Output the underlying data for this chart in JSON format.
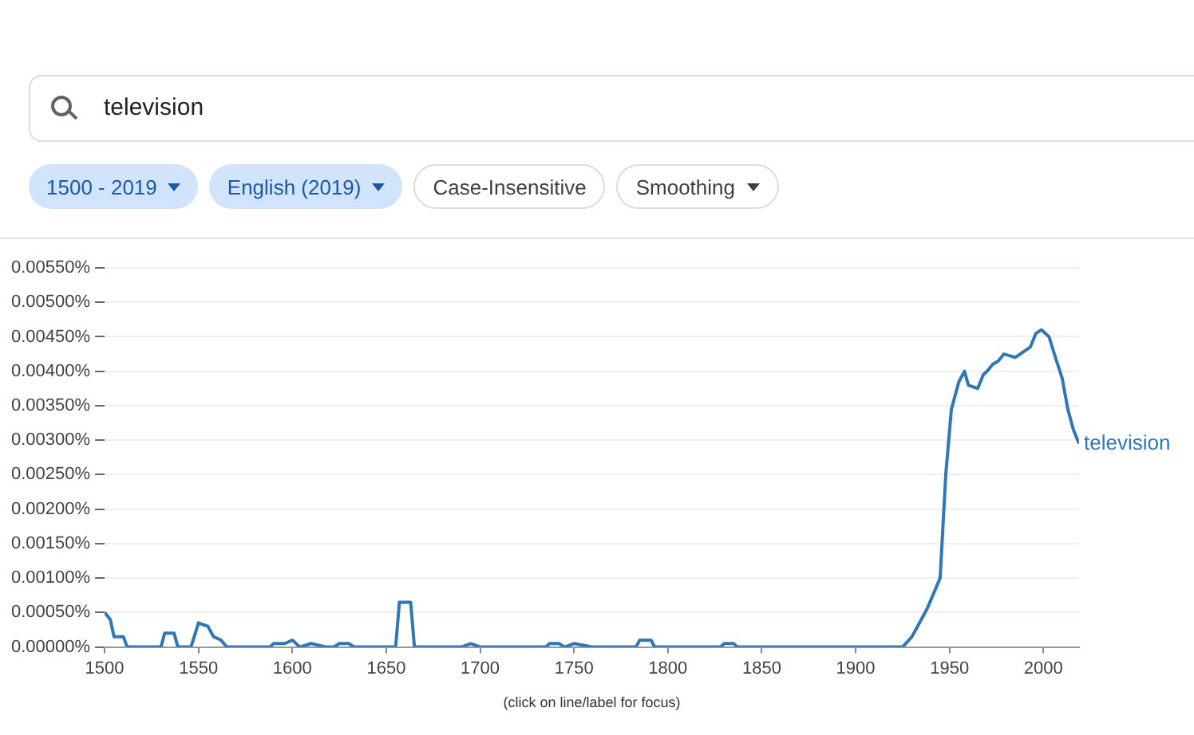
{
  "chart_data": {
    "type": "line",
    "x": [
      1500,
      1503,
      1505,
      1510,
      1512,
      1530,
      1532,
      1537,
      1539,
      1546,
      1550,
      1555,
      1558,
      1562,
      1565,
      1588,
      1590,
      1596,
      1600,
      1604,
      1610,
      1618,
      1622,
      1625,
      1630,
      1633,
      1655,
      1657,
      1663,
      1665,
      1672,
      1690,
      1695,
      1700,
      1735,
      1737,
      1742,
      1745,
      1750,
      1760,
      1783,
      1785,
      1791,
      1793,
      1828,
      1830,
      1835,
      1837,
      1900,
      1910,
      1920,
      1925,
      1930,
      1935,
      1938,
      1945,
      1948,
      1951,
      1955,
      1958,
      1960,
      1965,
      1968,
      1970,
      1973,
      1976,
      1979,
      1985,
      1993,
      1996,
      1999,
      2003,
      2007,
      2010,
      2013,
      2016,
      2019
    ],
    "series": [
      {
        "name": "television",
        "color": "#2f77b8",
        "values": [
          0.0005,
          0.0004,
          0.00015,
          0.00015,
          0,
          0,
          0.0002,
          0.0002,
          0,
          0,
          0.00035,
          0.0003,
          0.00015,
          0.0001,
          0,
          0,
          5e-05,
          5e-05,
          0.0001,
          0,
          5e-05,
          0,
          0,
          5e-05,
          5e-05,
          0,
          0,
          0.00065,
          0.00065,
          0,
          0,
          0,
          5e-05,
          0,
          0,
          5e-05,
          5e-05,
          0,
          5e-05,
          0,
          0,
          0.0001,
          0.0001,
          0,
          0,
          5e-05,
          5e-05,
          0,
          0,
          0,
          0,
          0,
          0.00015,
          0.0004,
          0.00055,
          0.001,
          0.0025,
          0.00345,
          0.00385,
          0.004,
          0.0038,
          0.00375,
          0.00395,
          0.004,
          0.0041,
          0.00415,
          0.00425,
          0.0042,
          0.00435,
          0.00455,
          0.0046,
          0.0045,
          0.00415,
          0.0039,
          0.00345,
          0.00315,
          0.00295
        ]
      }
    ],
    "xlim": [
      1500,
      2019
    ],
    "xticks": [
      1500,
      1550,
      1600,
      1650,
      1700,
      1750,
      1800,
      1850,
      1900,
      1950,
      2000
    ],
    "ylim": [
      0,
      0.0055
    ],
    "yticks": [
      {
        "value": 0,
        "label": "0.00000%"
      },
      {
        "value": 0.0005,
        "label": "0.00050%"
      },
      {
        "value": 0.001,
        "label": "0.00100%"
      },
      {
        "value": 0.0015,
        "label": "0.00150%"
      },
      {
        "value": 0.002,
        "label": "0.00200%"
      },
      {
        "value": 0.0025,
        "label": "0.00250%"
      },
      {
        "value": 0.003,
        "label": "0.00300%"
      },
      {
        "value": 0.0035,
        "label": "0.00350%"
      },
      {
        "value": 0.004,
        "label": "0.00400%"
      },
      {
        "value": 0.0045,
        "label": "0.00450%"
      },
      {
        "value": 0.005,
        "label": "0.00500%"
      },
      {
        "value": 0.0055,
        "label": "0.00550%"
      }
    ],
    "grid": "y",
    "legend": false,
    "marker": "none",
    "line_style": "solid",
    "annotations": [
      "television",
      "1500 - 2019",
      "English (2019)",
      "Case-Insensitive",
      "Smoothing",
      "(click on line/label for focus)"
    ]
  }
}
